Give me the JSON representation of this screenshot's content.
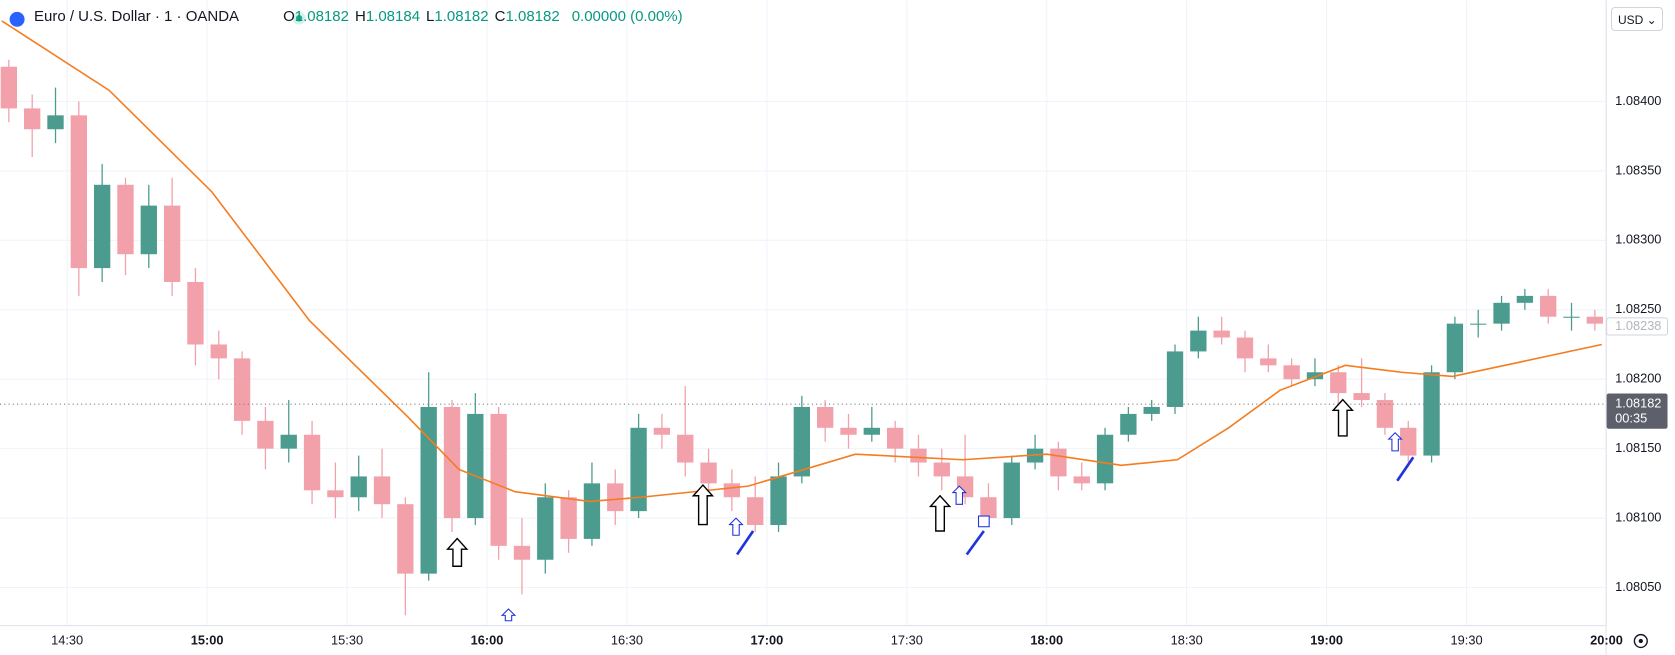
{
  "chart_data": {
    "type": "candlestick",
    "title": "Euro / U.S. Dollar · 1 · OANDA",
    "legend": [
      {
        "label": "O",
        "value": "1.08182"
      },
      {
        "label": "H",
        "value": "1.08184"
      },
      {
        "label": "L",
        "value": "1.08182"
      },
      {
        "label": "C",
        "value": "1.08182"
      }
    ],
    "change": "0.00000 (0.00%)",
    "currency": "USD",
    "up_color": "#4b9c8f",
    "down_color": "#f2a0a9",
    "x": [
      855,
      860,
      865,
      870,
      875,
      880,
      885,
      890,
      895,
      900,
      905,
      910,
      915,
      920,
      925,
      930,
      935,
      940,
      945,
      950,
      955,
      960,
      965,
      970,
      975,
      980,
      985,
      990,
      995,
      1000,
      1005,
      1010,
      1015,
      1020,
      1025,
      1030,
      1035,
      1040,
      1045,
      1050,
      1055,
      1060,
      1065,
      1070,
      1075,
      1080,
      1085,
      1090,
      1095,
      1100,
      1105,
      1110,
      1115,
      1120,
      1125,
      1130,
      1135,
      1140,
      1145,
      1150,
      1155,
      1160,
      1165,
      1170,
      1175,
      1180,
      1185,
      1190,
      1195
    ],
    "open": [
      1.08425,
      1.08395,
      1.0838,
      1.0839,
      1.0828,
      1.0834,
      1.0829,
      1.08325,
      1.0827,
      1.08225,
      1.08215,
      1.0817,
      1.0815,
      1.0816,
      1.0812,
      1.08115,
      1.0813,
      1.0811,
      1.0806,
      1.0818,
      1.081,
      1.08175,
      1.0808,
      1.0807,
      1.08115,
      1.08085,
      1.08125,
      1.08105,
      1.08165,
      1.0816,
      1.0814,
      1.08125,
      1.08115,
      1.08095,
      1.0813,
      1.0818,
      1.08165,
      1.0816,
      1.08165,
      1.0815,
      1.0814,
      1.0813,
      1.08115,
      1.081,
      1.0814,
      1.0815,
      1.0813,
      1.08125,
      1.0816,
      1.08175,
      1.0818,
      1.0822,
      1.08235,
      1.0823,
      1.08215,
      1.0821,
      1.082,
      1.08205,
      1.0819,
      1.08185,
      1.08165,
      1.08145,
      1.08205,
      1.0824,
      1.0824,
      1.08255,
      1.0826,
      1.08245,
      1.08245
    ],
    "high": [
      1.0843,
      1.08405,
      1.0841,
      1.084,
      1.08355,
      1.08345,
      1.0834,
      1.08345,
      1.0828,
      1.08235,
      1.0822,
      1.0818,
      1.08185,
      1.0817,
      1.0814,
      1.08145,
      1.0815,
      1.08115,
      1.08205,
      1.08185,
      1.0819,
      1.0818,
      1.081,
      1.08125,
      1.0812,
      1.0814,
      1.08135,
      1.08175,
      1.08175,
      1.08195,
      1.0815,
      1.08135,
      1.0813,
      1.0814,
      1.08188,
      1.08185,
      1.08175,
      1.0818,
      1.0817,
      1.0816,
      1.0815,
      1.0816,
      1.08125,
      1.08145,
      1.0816,
      1.08155,
      1.0814,
      1.08165,
      1.0818,
      1.08185,
      1.08225,
      1.08245,
      1.08245,
      1.08235,
      1.08225,
      1.08215,
      1.08215,
      1.0821,
      1.08215,
      1.0819,
      1.0817,
      1.0821,
      1.08245,
      1.0825,
      1.0826,
      1.08265,
      1.08265,
      1.08255,
      1.0825
    ],
    "low": [
      1.08385,
      1.0836,
      1.0837,
      1.0826,
      1.0827,
      1.08275,
      1.0828,
      1.0826,
      1.0821,
      1.082,
      1.0816,
      1.08135,
      1.0814,
      1.0811,
      1.081,
      1.08105,
      1.081,
      1.0803,
      1.08055,
      1.0809,
      1.08095,
      1.0807,
      1.08045,
      1.0806,
      1.08075,
      1.0808,
      1.08095,
      1.081,
      1.0815,
      1.0813,
      1.08115,
      1.08105,
      1.0809,
      1.0809,
      1.08125,
      1.08155,
      1.0815,
      1.08155,
      1.0814,
      1.0813,
      1.0812,
      1.0811,
      1.08095,
      1.08095,
      1.08135,
      1.0812,
      1.0812,
      1.0812,
      1.08155,
      1.0817,
      1.08175,
      1.08215,
      1.08225,
      1.08205,
      1.08205,
      1.08195,
      1.08195,
      1.0818,
      1.0818,
      1.0816,
      1.0814,
      1.0814,
      1.082,
      1.0823,
      1.08235,
      1.0825,
      1.0824,
      1.08235,
      1.08235
    ],
    "close": [
      1.08395,
      1.0838,
      1.0839,
      1.0828,
      1.0834,
      1.0829,
      1.08325,
      1.0827,
      1.08225,
      1.08215,
      1.0817,
      1.0815,
      1.0816,
      1.0812,
      1.08115,
      1.0813,
      1.0811,
      1.0806,
      1.0818,
      1.081,
      1.08175,
      1.0808,
      1.0807,
      1.08115,
      1.08085,
      1.08125,
      1.08105,
      1.08165,
      1.0816,
      1.0814,
      1.08125,
      1.08115,
      1.08095,
      1.0813,
      1.0818,
      1.08165,
      1.0816,
      1.08165,
      1.0815,
      1.0814,
      1.0813,
      1.08115,
      1.081,
      1.0814,
      1.0815,
      1.0813,
      1.08125,
      1.0816,
      1.08175,
      1.0818,
      1.0822,
      1.08235,
      1.0823,
      1.08215,
      1.0821,
      1.082,
      1.08205,
      1.0819,
      1.08185,
      1.08165,
      1.08145,
      1.08205,
      1.0824,
      1.0824,
      1.08255,
      1.0826,
      1.08245,
      1.08245,
      1.0824
    ],
    "ma": {
      "color": "#f57c1f",
      "x": [
        856,
        879,
        901,
        922,
        943,
        954,
        966,
        982,
        993,
        1016,
        1039,
        1062,
        1080,
        1096,
        1108,
        1119,
        1130,
        1144,
        1156,
        1167,
        1181,
        1199
      ],
      "values": [
        1.08458,
        1.08408,
        1.08335,
        1.08242,
        1.08173,
        1.08135,
        1.08119,
        1.08112,
        1.08115,
        1.08123,
        1.08146,
        1.08142,
        1.08146,
        1.08138,
        1.08142,
        1.08165,
        1.08192,
        1.0821,
        1.08205,
        1.08202,
        1.08212,
        1.08225
      ]
    },
    "last_price": 1.08182,
    "countdown": "00:35",
    "marker_price": 1.08238,
    "xlim": [
      855.6,
      1199.8
    ],
    "ylim": [
      1.08023,
      1.08473
    ],
    "xticks": [
      {
        "value": 870,
        "label": "14:30"
      },
      {
        "value": 900,
        "label": "15:00"
      },
      {
        "value": 930,
        "label": "15:30"
      },
      {
        "value": 960,
        "label": "16:00"
      },
      {
        "value": 990,
        "label": "16:30"
      },
      {
        "value": 1020,
        "label": "17:00"
      },
      {
        "value": 1050,
        "label": "17:30"
      },
      {
        "value": 1080,
        "label": "18:00"
      },
      {
        "value": 1110,
        "label": "18:30"
      },
      {
        "value": 1140,
        "label": "19:00"
      },
      {
        "value": 1170,
        "label": "19:30"
      },
      {
        "value": 1200,
        "label": "20:00"
      }
    ],
    "yticks": [
      {
        "value": 1.0805,
        "label": "1.08050"
      },
      {
        "value": 1.081,
        "label": "1.08100"
      },
      {
        "value": 1.0815,
        "label": "1.08150"
      },
      {
        "value": 1.082,
        "label": "1.08200"
      },
      {
        "value": 1.0825,
        "label": "1.08250"
      },
      {
        "value": 1.083,
        "label": "1.08300"
      },
      {
        "value": 1.0835,
        "label": "1.08350"
      },
      {
        "value": 1.084,
        "label": "1.08400"
      }
    ],
    "grid": true
  }
}
